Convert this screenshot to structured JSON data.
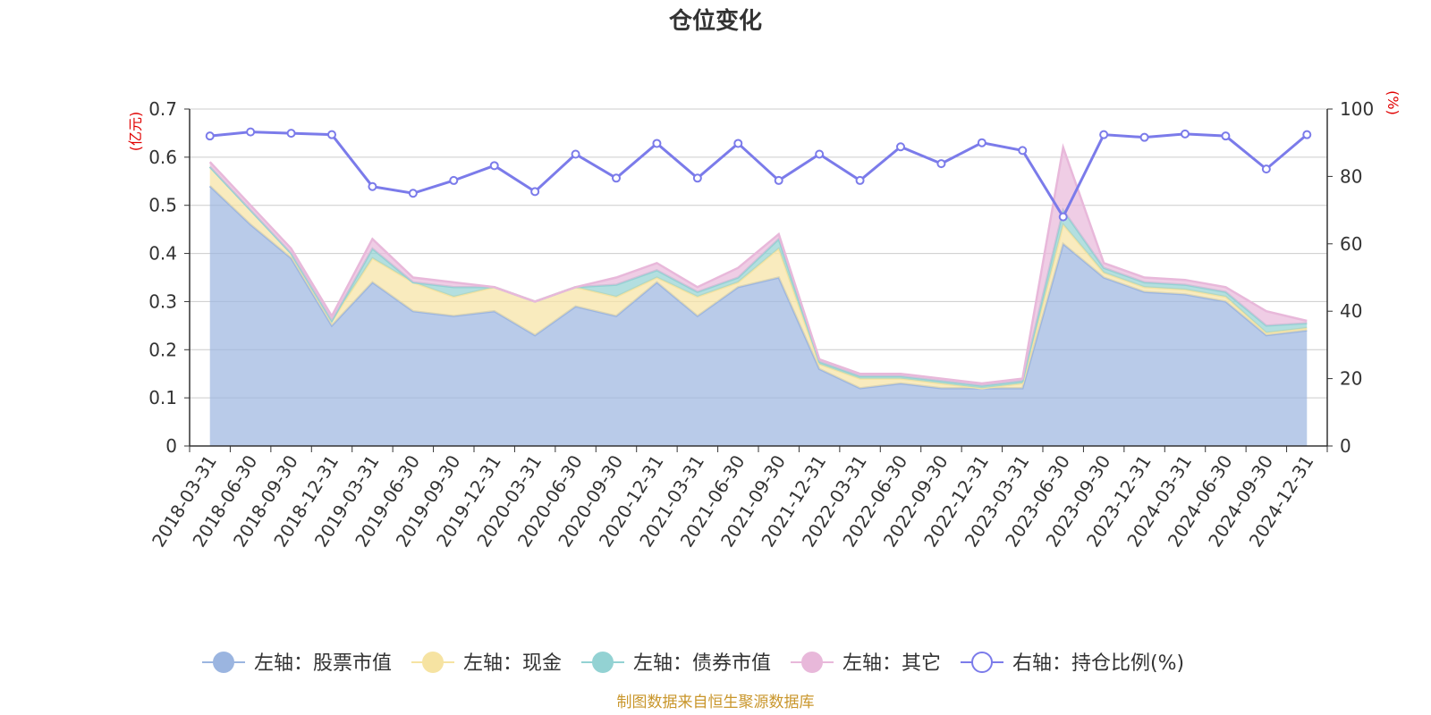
{
  "chart_data": {
    "type": "area",
    "title": "仓位变化",
    "x": [
      "2018-03-31",
      "2018-06-30",
      "2018-09-30",
      "2018-12-31",
      "2019-03-31",
      "2019-06-30",
      "2019-09-30",
      "2019-12-31",
      "2020-03-31",
      "2020-06-30",
      "2020-09-30",
      "2020-12-31",
      "2021-03-31",
      "2021-06-30",
      "2021-09-30",
      "2021-12-31",
      "2022-03-31",
      "2022-06-30",
      "2022-09-30",
      "2022-12-31",
      "2023-03-31",
      "2023-06-30",
      "2023-09-30",
      "2023-12-31",
      "2024-03-31",
      "2024-06-30",
      "2024-09-30",
      "2024-12-31"
    ],
    "left_axis": {
      "unit": "(亿元)",
      "ylim": [
        0,
        0.7
      ],
      "ticks": [
        "0",
        "0.1",
        "0.2",
        "0.3",
        "0.4",
        "0.5",
        "0.6",
        "0.7"
      ]
    },
    "right_axis": {
      "unit": "(%)",
      "ylim": [
        0,
        100
      ],
      "ticks": [
        "0",
        "20",
        "40",
        "60",
        "80",
        "100"
      ]
    },
    "stacked_series": [
      {
        "name": "左轴：股票市值",
        "color": "#9bb5e0",
        "values": [
          0.54,
          0.46,
          0.39,
          0.25,
          0.34,
          0.28,
          0.27,
          0.28,
          0.23,
          0.29,
          0.27,
          0.34,
          0.27,
          0.33,
          0.35,
          0.16,
          0.12,
          0.13,
          0.12,
          0.12,
          0.12,
          0.42,
          0.35,
          0.32,
          0.315,
          0.3,
          0.23,
          0.24
        ]
      },
      {
        "name": "左轴：现金",
        "color": "#f6e3a2",
        "values": [
          0.04,
          0.03,
          0.01,
          0.01,
          0.05,
          0.06,
          0.04,
          0.05,
          0.07,
          0.04,
          0.04,
          0.01,
          0.04,
          0.01,
          0.06,
          0.01,
          0.02,
          0.01,
          0.01,
          0.0,
          0.01,
          0.04,
          0.01,
          0.01,
          0.01,
          0.01,
          0.005,
          0.005
        ]
      },
      {
        "name": "左轴：债券市值",
        "color": "#93d2d3",
        "values": [
          0.0,
          0.0,
          0.0,
          0.0,
          0.02,
          0.0,
          0.02,
          0.0,
          0.0,
          0.0,
          0.025,
          0.015,
          0.01,
          0.01,
          0.02,
          0.005,
          0.005,
          0.005,
          0.005,
          0.005,
          0.005,
          0.03,
          0.01,
          0.01,
          0.01,
          0.01,
          0.015,
          0.01
        ]
      },
      {
        "name": "左轴：其它",
        "color": "#e8b8da",
        "values": [
          0.01,
          0.01,
          0.01,
          0.01,
          0.02,
          0.01,
          0.01,
          0.0,
          0.0,
          0.0,
          0.015,
          0.015,
          0.01,
          0.02,
          0.01,
          0.005,
          0.005,
          0.005,
          0.005,
          0.005,
          0.005,
          0.13,
          0.01,
          0.01,
          0.01,
          0.01,
          0.03,
          0.005
        ]
      }
    ],
    "line_series": {
      "name": "右轴：持仓比例(%)",
      "color": "#7b7bea",
      "axis": "right",
      "values": [
        92.0,
        93.2,
        92.8,
        92.4,
        77.0,
        75.0,
        78.8,
        83.2,
        75.5,
        86.6,
        79.5,
        89.8,
        79.5,
        89.8,
        78.8,
        86.6,
        78.8,
        88.8,
        83.8,
        90.0,
        87.7,
        68.0,
        92.4,
        91.6,
        92.6,
        92.0,
        82.2,
        92.4
      ]
    },
    "grid": true,
    "legend_position": "bottom"
  },
  "source_note": "制图数据来自恒生聚源数据库"
}
